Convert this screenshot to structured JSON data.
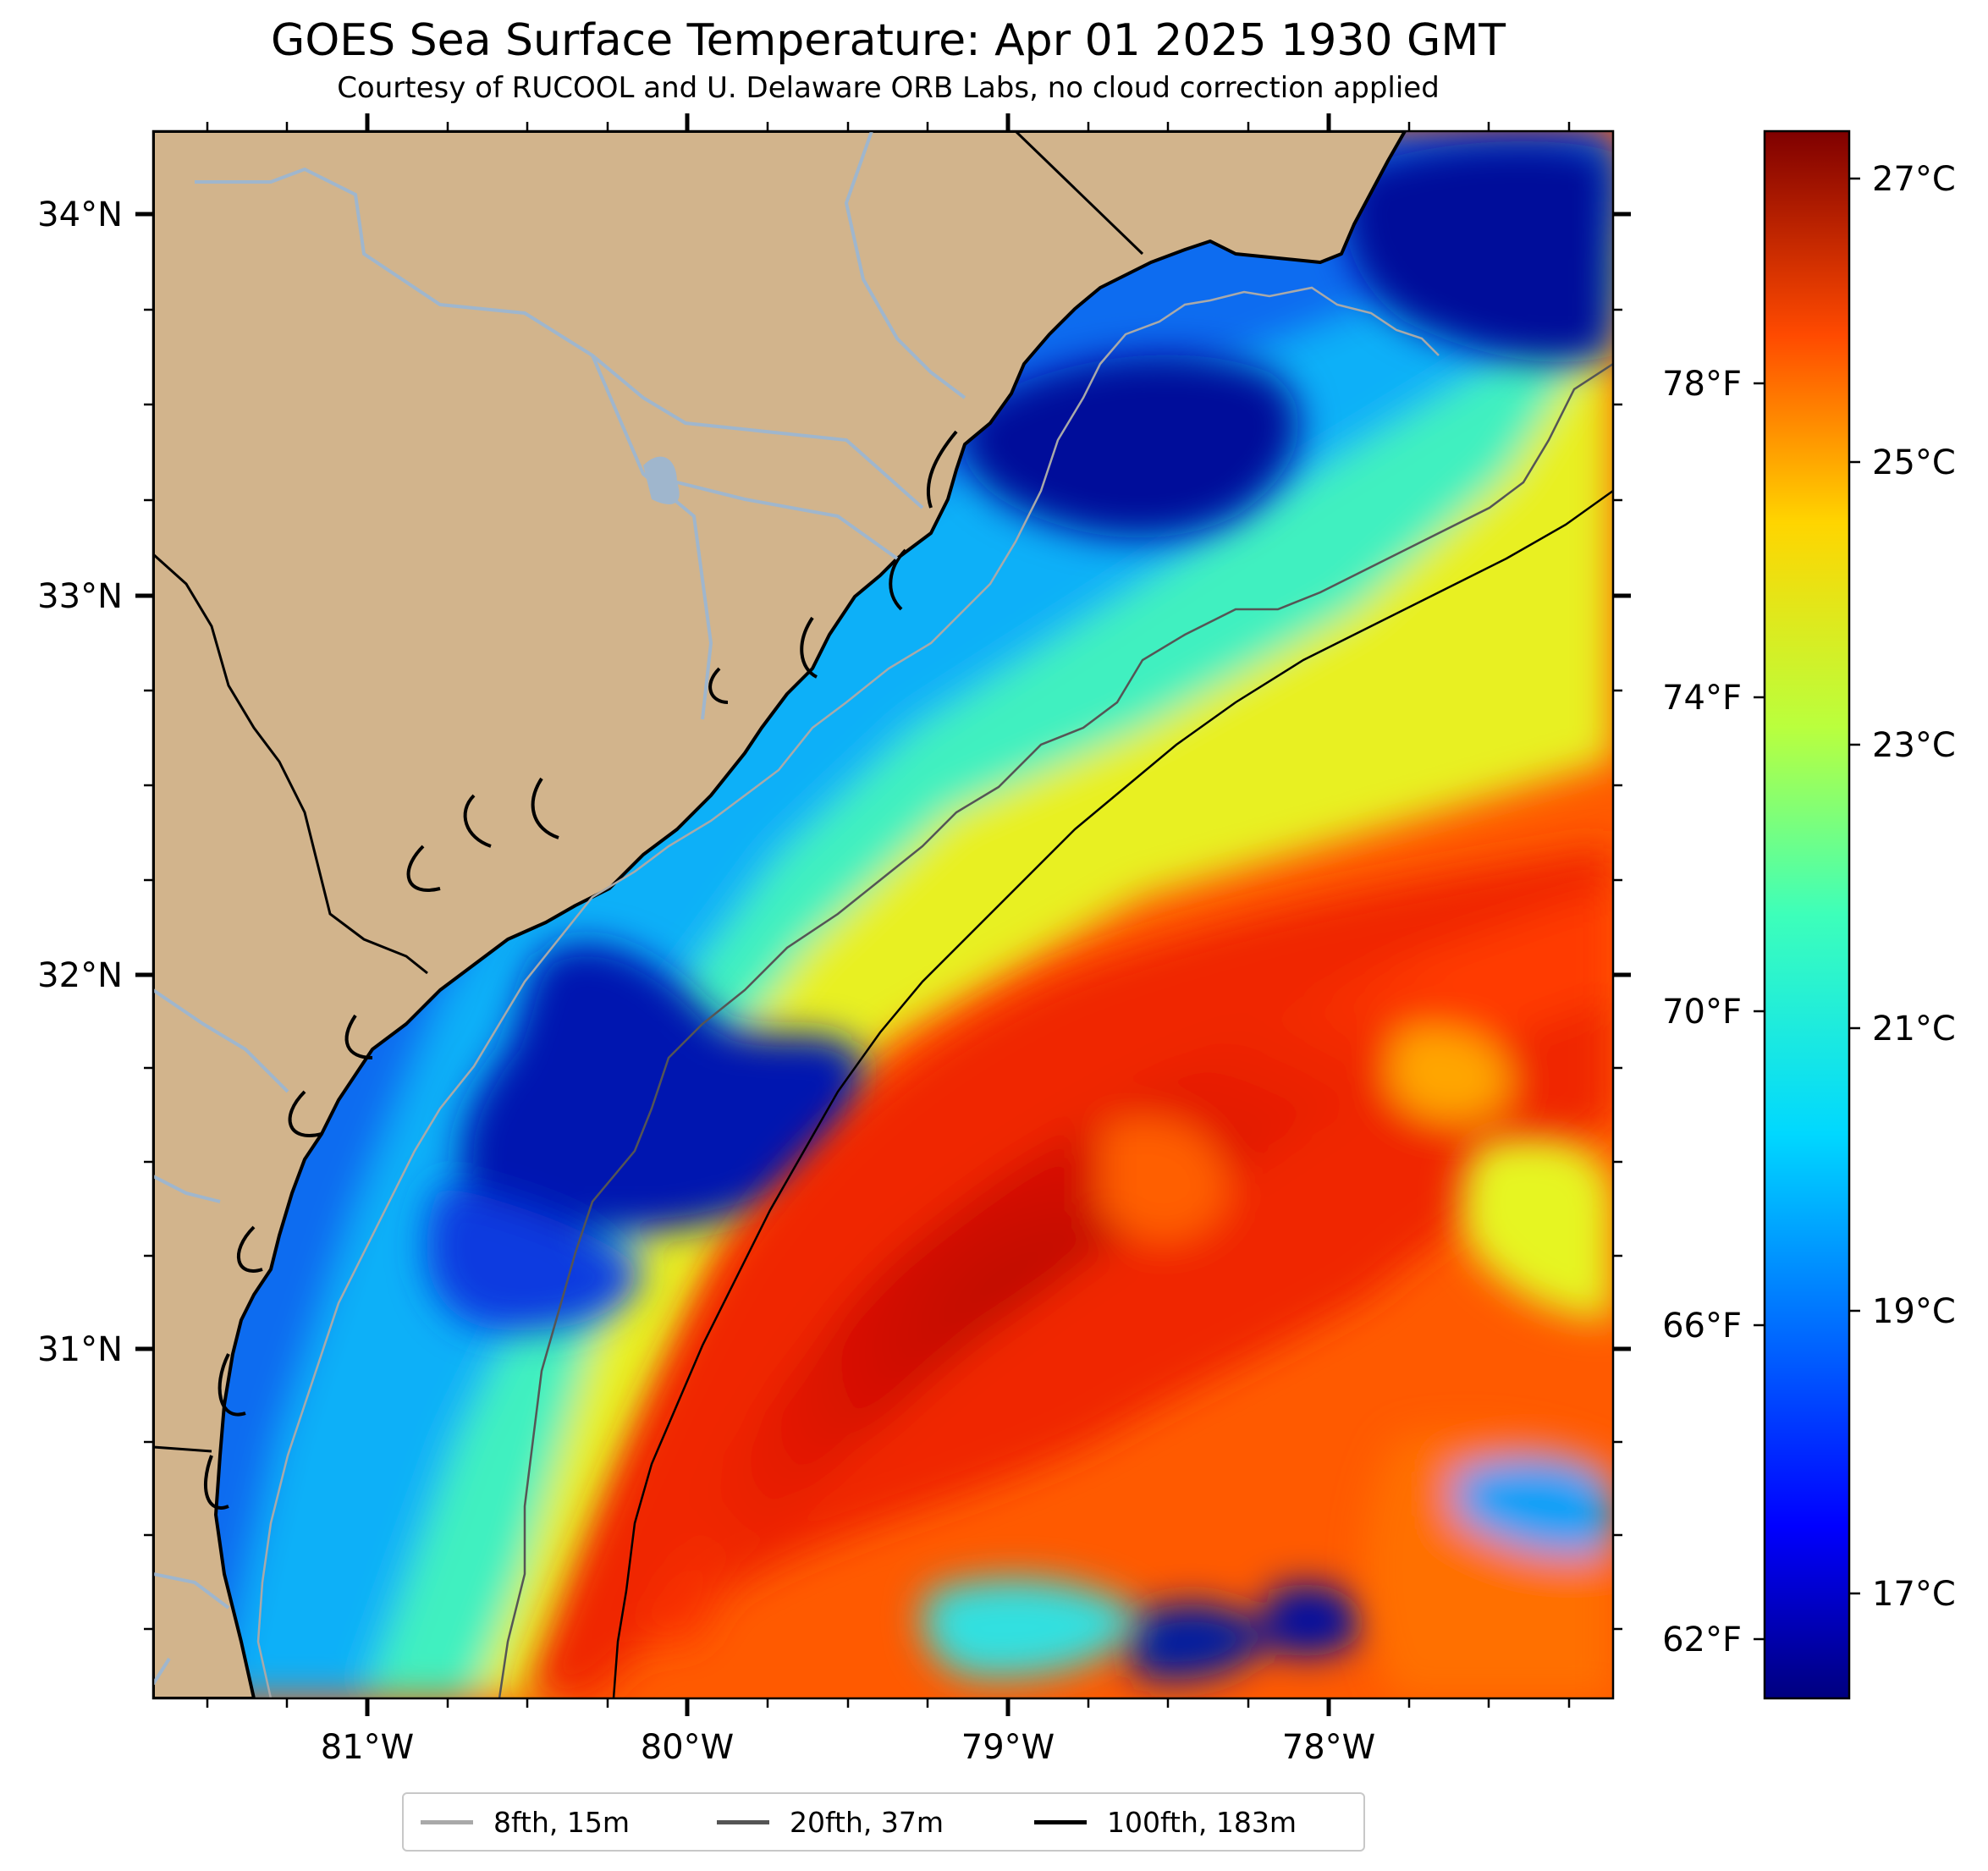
{
  "title": "GOES Sea Surface Temperature: Apr 01 2025 1930 GMT",
  "subtitle": "Courtesy of RUCOOL and U. Delaware ORB Labs, no cloud correction applied",
  "map": {
    "lat_labels": [
      "34°N",
      "33°N",
      "32°N",
      "31°N"
    ],
    "lon_labels": [
      "81°W",
      "80°W",
      "79°W",
      "78°W"
    ],
    "colors": {
      "land": "#d2b48c",
      "river": "#9fb6cd",
      "coast": "#000000"
    }
  },
  "colorbar": {
    "celsius_labels": [
      "27°C",
      "25°C",
      "23°C",
      "21°C",
      "19°C",
      "17°C"
    ],
    "fahrenheit_labels": [
      "78°F",
      "74°F",
      "70°F",
      "66°F",
      "62°F"
    ],
    "colormap": "jet"
  },
  "legend": {
    "items": [
      {
        "label": "8fth, 15m",
        "color": "#a9a9a9"
      },
      {
        "label": "20fth, 37m",
        "color": "#555555"
      },
      {
        "label": "100fth, 183m",
        "color": "#000000"
      }
    ]
  }
}
